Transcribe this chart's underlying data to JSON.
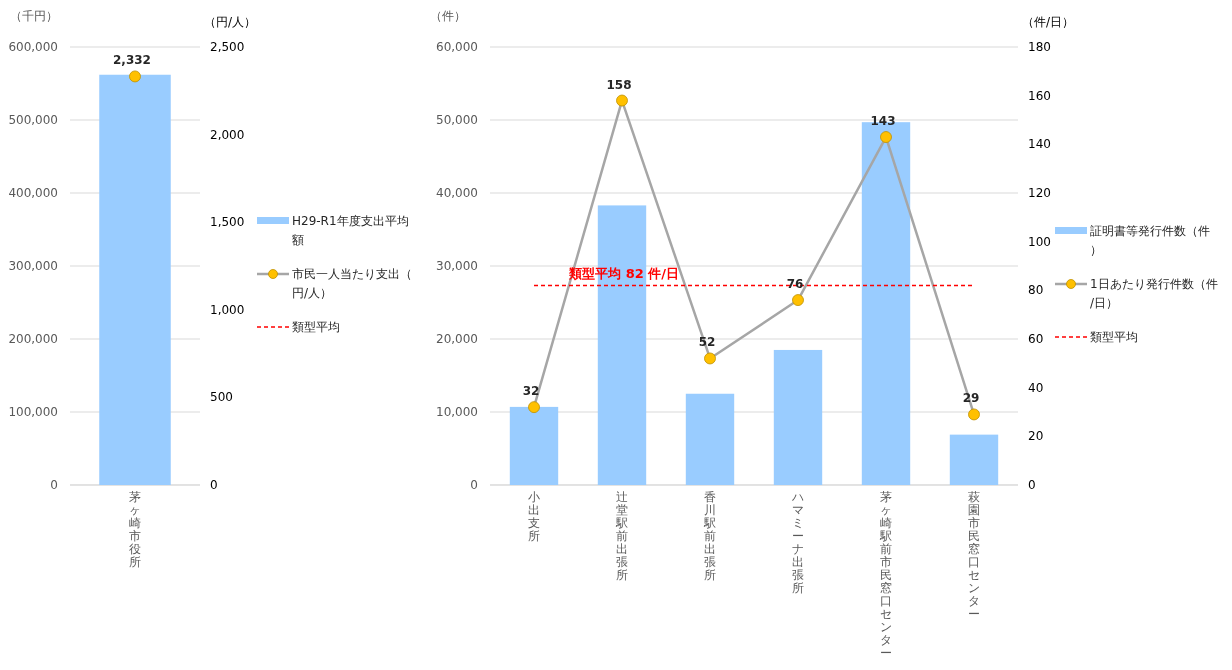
{
  "chart_data": [
    {
      "type": "bar",
      "categories": [
        "茅ヶ崎市役所"
      ],
      "ylabel": "（千円）",
      "y2label": "（円/人）",
      "ylim": [
        0,
        600000
      ],
      "yticks": [
        {
          "value": 0,
          "label": "0"
        },
        {
          "value": 100000,
          "label": "100,000"
        },
        {
          "value": 200000,
          "label": "200,000"
        },
        {
          "value": 300000,
          "label": "300,000"
        },
        {
          "value": 400000,
          "label": "400,000"
        },
        {
          "value": 500000,
          "label": "500,000"
        },
        {
          "value": 600000,
          "label": "600,000"
        }
      ],
      "y2lim": [
        0,
        2500
      ],
      "y2ticks": [
        {
          "value": 0,
          "label": "0"
        },
        {
          "value": 500,
          "label": "500"
        },
        {
          "value": 1000,
          "label": "1,000"
        },
        {
          "value": 1500,
          "label": "1,500"
        },
        {
          "value": 2000,
          "label": "2,000"
        },
        {
          "value": 2500,
          "label": "2,500"
        }
      ],
      "grid": "y",
      "legend": "right",
      "series": [
        {
          "name": "H29-R1年度支出平均額",
          "color": "#99ccff",
          "values": [
            562000
          ]
        },
        {
          "name": "市民一人当たり支出（円/人）",
          "type": "line",
          "axis": "y2",
          "color": "#a6a6a6",
          "colors": [
            "#ffc000"
          ],
          "marker": "circle",
          "values": [
            2332
          ],
          "value_labels": [
            "2,332"
          ]
        },
        {
          "name": "類型平均",
          "type": "line",
          "axis": "y2",
          "color": "#ff0000",
          "line_style": "dashed",
          "values": [
            null
          ]
        }
      ]
    },
    {
      "type": "bar",
      "categories": [
        "小出支所",
        "辻堂駅前出張所",
        "香川駅前出張所",
        "ハマミーナ出張所",
        "茅ヶ崎駅前市民窓口センター",
        "萩園市民窓口センター"
      ],
      "ylabel": "（件）",
      "y2label": "（件/日）",
      "ylim": [
        0,
        60000
      ],
      "yticks": [
        {
          "value": 0,
          "label": "0"
        },
        {
          "value": 10000,
          "label": "10,000"
        },
        {
          "value": 20000,
          "label": "20,000"
        },
        {
          "value": 30000,
          "label": "30,000"
        },
        {
          "value": 40000,
          "label": "40,000"
        },
        {
          "value": 50000,
          "label": "50,000"
        },
        {
          "value": 60000,
          "label": "60,000"
        }
      ],
      "y2lim": [
        0,
        180
      ],
      "y2ticks": [
        0,
        20,
        40,
        60,
        80,
        100,
        120,
        140,
        160,
        180
      ],
      "grid": "y",
      "legend": "right",
      "series": [
        {
          "name": "証明書等発行件数（件）",
          "color": "#99ccff",
          "values": [
            10700,
            38300,
            12500,
            18500,
            49700,
            6900
          ]
        },
        {
          "name": "1日あたり発行件数（件/日）",
          "type": "line",
          "axis": "y2",
          "color": "#a6a6a6",
          "colors": [
            "#ffc000",
            "#ffc000",
            "#ffc000",
            "#ffc000",
            "#ffc000",
            "#ffc000"
          ],
          "marker": "circle",
          "values": [
            32,
            158,
            52,
            76,
            143,
            29
          ],
          "value_labels": [
            "32",
            "158",
            "52",
            "76",
            "143",
            "29"
          ]
        },
        {
          "name": "類型平均",
          "type": "line",
          "axis": "y2",
          "color": "#ff0000",
          "line_style": "dashed",
          "values": [
            null,
            null,
            null,
            null,
            null,
            null
          ]
        }
      ],
      "ref_lines": [
        {
          "axis": "y2",
          "value": 82,
          "label": "類型平均 82 件/日",
          "color": "#ff0000",
          "line_style": "dashed"
        }
      ]
    }
  ]
}
